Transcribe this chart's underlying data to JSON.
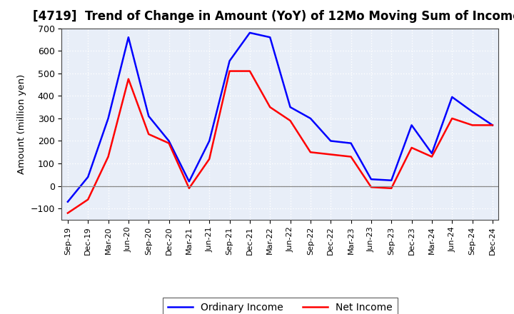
{
  "title": "[4719]  Trend of Change in Amount (YoY) of 12Mo Moving Sum of Incomes",
  "ylabel": "Amount (million yen)",
  "x_labels": [
    "Sep-19",
    "Dec-19",
    "Mar-20",
    "Jun-20",
    "Sep-20",
    "Dec-20",
    "Mar-21",
    "Jun-21",
    "Sep-21",
    "Dec-21",
    "Mar-22",
    "Jun-22",
    "Sep-22",
    "Dec-22",
    "Mar-23",
    "Jun-23",
    "Sep-23",
    "Dec-23",
    "Mar-24",
    "Jun-24",
    "Sep-24",
    "Dec-24"
  ],
  "ordinary_income": [
    -70,
    40,
    300,
    660,
    310,
    200,
    20,
    200,
    555,
    680,
    660,
    350,
    300,
    200,
    190,
    30,
    25,
    270,
    145,
    395,
    330,
    270
  ],
  "net_income": [
    -120,
    -60,
    130,
    475,
    230,
    190,
    -10,
    120,
    510,
    510,
    350,
    290,
    150,
    140,
    130,
    -5,
    -10,
    170,
    130,
    300,
    270,
    270
  ],
  "ordinary_color": "#0000FF",
  "net_color": "#FF0000",
  "ylim": [
    -150,
    700
  ],
  "yticks": [
    -100,
    0,
    100,
    200,
    300,
    400,
    500,
    600,
    700
  ],
  "background_color": "#FFFFFF",
  "plot_bg_color": "#E8EEF8",
  "grid_color": "#FFFFFF",
  "legend_labels": [
    "Ordinary Income",
    "Net Income"
  ],
  "line_width": 1.8,
  "title_fontsize": 12
}
